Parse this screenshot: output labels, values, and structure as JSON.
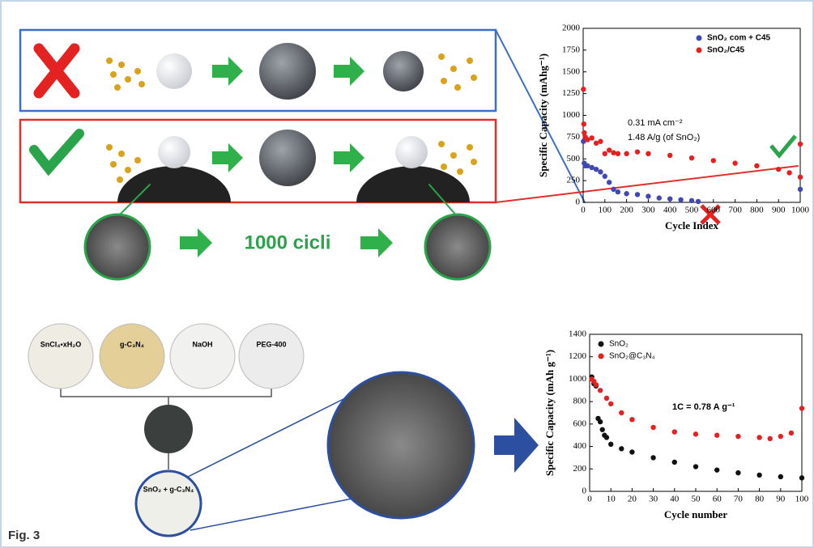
{
  "figure": {
    "label": "Fig. 3",
    "process_text": "1000 cicli",
    "reagents": [
      "SnCl₄•xH₂O",
      "g-C₃N₄",
      "NaOH",
      "PEG-400"
    ],
    "product": "SnO₂ + g-C₃N₄"
  },
  "chart_data": [
    {
      "type": "scatter",
      "xlabel": "Cycle Index",
      "ylabel": "Specific Capacity (mAhg⁻¹)",
      "xlim": [
        0,
        1000
      ],
      "xticks": [
        0,
        100,
        200,
        300,
        400,
        500,
        600,
        700,
        800,
        900,
        1000
      ],
      "ylim": [
        0,
        2000
      ],
      "yticks": [
        0,
        250,
        500,
        750,
        1000,
        1250,
        1500,
        1750,
        2000
      ],
      "legend": "upper right",
      "annotations": [
        "0.31 mA cm⁻²",
        "1.48 A/g (of SnO₂)"
      ],
      "series": [
        {
          "name": "SnO₂ com + C45",
          "color": "#3f48b5",
          "x": [
            1,
            5,
            10,
            20,
            40,
            60,
            80,
            100,
            120,
            140,
            160,
            200,
            250,
            300,
            350,
            400,
            450,
            500,
            530,
            1000
          ],
          "values": [
            700,
            450,
            420,
            420,
            400,
            380,
            350,
            300,
            230,
            150,
            120,
            100,
            90,
            70,
            50,
            40,
            30,
            20,
            10,
            150
          ]
        },
        {
          "name": "SnO₂/C45",
          "color": "#e62020",
          "x": [
            1,
            3,
            5,
            10,
            20,
            40,
            60,
            80,
            100,
            120,
            140,
            160,
            200,
            250,
            300,
            400,
            500,
            600,
            700,
            800,
            900,
            950,
            1000,
            1000
          ],
          "values": [
            1300,
            900,
            800,
            750,
            720,
            740,
            680,
            700,
            560,
            600,
            570,
            560,
            560,
            580,
            560,
            540,
            510,
            480,
            450,
            420,
            380,
            340,
            290,
            670
          ]
        }
      ]
    },
    {
      "type": "scatter",
      "xlabel": "Cycle number",
      "ylabel": "Specific Capacity (mAh g⁻¹)",
      "xlim": [
        0,
        100
      ],
      "xticks": [
        0,
        10,
        20,
        30,
        40,
        50,
        60,
        70,
        80,
        90,
        100
      ],
      "ylim": [
        0,
        1400
      ],
      "yticks": [
        0,
        200,
        400,
        600,
        800,
        1000,
        1200,
        1400
      ],
      "legend": "upper left",
      "annotations": [
        "1C = 0.78 A g⁻¹"
      ],
      "series": [
        {
          "name": "SnO₂",
          "color": "#111111",
          "x": [
            1,
            2,
            3,
            4,
            5,
            6,
            7,
            8,
            10,
            15,
            20,
            30,
            40,
            50,
            60,
            70,
            80,
            90,
            100
          ],
          "values": [
            1020,
            960,
            940,
            650,
            620,
            550,
            500,
            480,
            420,
            380,
            350,
            300,
            260,
            220,
            190,
            165,
            145,
            130,
            120
          ]
        },
        {
          "name": "SnO₂@C₃N₄",
          "color": "#e62020",
          "x": [
            1,
            2,
            3,
            5,
            8,
            10,
            15,
            20,
            30,
            40,
            50,
            60,
            70,
            80,
            85,
            90,
            95,
            100
          ],
          "values": [
            1000,
            980,
            950,
            900,
            830,
            780,
            700,
            640,
            570,
            530,
            510,
            500,
            490,
            480,
            470,
            490,
            520,
            740
          ]
        }
      ]
    }
  ]
}
